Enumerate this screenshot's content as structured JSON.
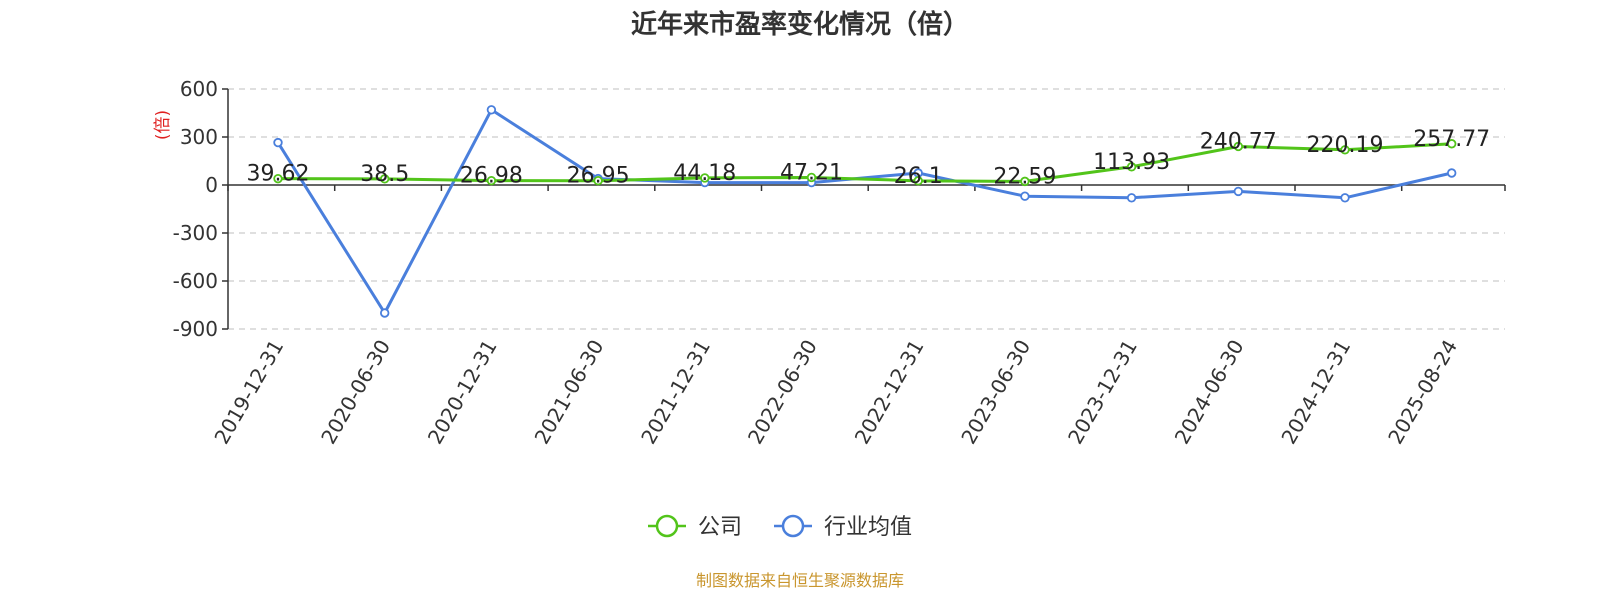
{
  "chart_data": {
    "type": "line",
    "title": "近年来市盈率变化情况（倍）",
    "ylabel": "(倍)",
    "xlabel": "",
    "categories": [
      "2019-12-31",
      "2020-06-30",
      "2020-12-31",
      "2021-06-30",
      "2021-12-31",
      "2022-06-30",
      "2022-12-31",
      "2023-06-30",
      "2023-12-31",
      "2024-06-30",
      "2024-12-31",
      "2025-08-24"
    ],
    "ylim": [
      -900,
      600
    ],
    "yticks": [
      600,
      300,
      0,
      -300,
      -600,
      -900
    ],
    "ytick_labels": [
      "600",
      "300",
      "0",
      "-300",
      "-600",
      "-900"
    ],
    "grid": true,
    "legend_position": "bottom-center",
    "series": [
      {
        "name": "公司",
        "color": "#52c41a",
        "values": [
          39.62,
          38.5,
          26.98,
          26.95,
          44.18,
          47.21,
          26.1,
          22.59,
          113.93,
          240.77,
          220.19,
          257.77
        ],
        "labels": [
          "39.62",
          "38.5",
          "26.98",
          "26.95",
          "44.18",
          "47.21",
          "26.1",
          "22.59",
          "113.93",
          "240.77",
          "220.19",
          "257.77"
        ]
      },
      {
        "name": "行业均值",
        "color": "#4a7fdc",
        "values": [
          265,
          -800,
          470,
          40,
          15,
          15,
          75,
          -70,
          -80,
          -40,
          -80,
          75
        ]
      }
    ]
  },
  "footer": {
    "source": "制图数据来自恒生聚源数据库"
  }
}
